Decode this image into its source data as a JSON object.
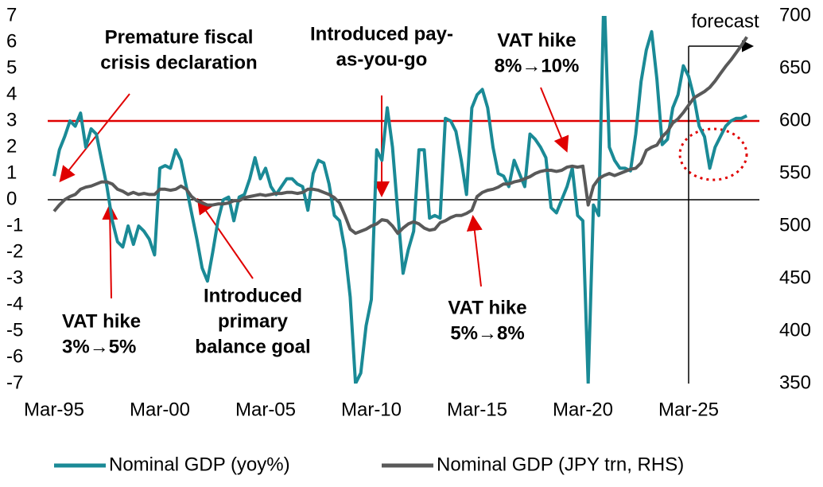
{
  "chart_data": {
    "type": "line",
    "categories": [
      "Mar-95",
      null,
      null,
      null,
      null,
      null,
      null,
      null,
      null,
      null,
      null,
      null,
      null,
      null,
      null,
      null,
      null,
      null,
      null,
      null,
      "Mar-00",
      null,
      null,
      null,
      null,
      null,
      null,
      null,
      null,
      null,
      null,
      null,
      null,
      null,
      null,
      null,
      null,
      null,
      null,
      null,
      "Mar-05",
      null,
      null,
      null,
      null,
      null,
      null,
      null,
      null,
      null,
      null,
      null,
      null,
      null,
      null,
      null,
      null,
      null,
      null,
      null,
      "Mar-10",
      null,
      null,
      null,
      null,
      null,
      null,
      null,
      null,
      null,
      null,
      null,
      null,
      null,
      null,
      null,
      null,
      null,
      null,
      null,
      "Mar-15",
      null,
      null,
      null,
      null,
      null,
      null,
      null,
      null,
      null,
      null,
      null,
      null,
      null,
      null,
      null,
      null,
      null,
      null,
      null,
      "Mar-20",
      null,
      null,
      null,
      null,
      null,
      null,
      null,
      null,
      null,
      null,
      null,
      null,
      null,
      null,
      null,
      null,
      null,
      null,
      null,
      "Mar-25",
      null,
      null,
      null,
      null,
      null,
      null,
      null,
      null,
      null,
      null,
      null
    ],
    "series": [
      {
        "name": "Nominal GDP (yoy%)",
        "color": "#1a8a96",
        "values": [
          0.9,
          1.9,
          2.4,
          3.0,
          2.8,
          3.3,
          2.0,
          2.7,
          2.5,
          1.5,
          0.5,
          -0.8,
          -1.6,
          -1.8,
          -1.0,
          -1.7,
          -1.0,
          -1.2,
          -1.5,
          -2.1,
          1.2,
          1.3,
          1.2,
          1.9,
          1.5,
          0.5,
          -0.5,
          -1.5,
          -2.6,
          -3.1,
          -2.0,
          -0.8,
          0.0,
          0.1,
          -0.8,
          0.1,
          0.2,
          0.8,
          1.6,
          0.8,
          1.2,
          0.5,
          0.2,
          0.5,
          0.8,
          0.8,
          0.6,
          0.5,
          -0.4,
          1.0,
          1.5,
          1.4,
          0.6,
          -0.6,
          -0.8,
          -1.9,
          -3.7,
          -7.0,
          -6.6,
          -4.8,
          -3.8,
          1.9,
          1.5,
          3.5,
          2.0,
          -0.5,
          -2.8,
          -1.9,
          -1.2,
          1.9,
          1.9,
          -0.7,
          -0.6,
          -0.7,
          3.1,
          3.0,
          2.6,
          1.5,
          0.2,
          3.5,
          4.0,
          4.2,
          3.5,
          2.0,
          1.0,
          0.9,
          0.5,
          1.5,
          1.0,
          0.5,
          2.5,
          2.3,
          2.0,
          1.6,
          -0.3,
          -0.5,
          0.0,
          0.5,
          1.2,
          -0.6,
          -0.8,
          -7.0,
          -0.2,
          -0.6,
          8.0,
          2.0,
          1.5,
          1.2,
          1.2,
          1.1,
          2.5,
          4.5,
          5.7,
          6.4,
          4.6,
          2.1,
          2.3,
          3.5,
          4.0,
          5.1,
          4.7,
          3.9,
          2.8,
          2.4,
          1.2,
          2.0,
          2.4,
          2.8,
          3.0,
          3.1,
          3.1,
          3.2
        ]
      },
      {
        "name": "Nominal GDP (JPY trn, RHS)",
        "color": "#595959",
        "axis": "y2",
        "values": [
          514,
          520,
          525,
          528,
          530,
          535,
          537,
          538,
          540,
          542,
          542,
          540,
          535,
          533,
          530,
          532,
          530,
          531,
          530,
          530,
          535,
          535,
          534,
          535,
          538,
          535,
          528,
          524,
          522,
          520,
          520,
          521,
          521,
          522,
          524,
          524,
          527,
          528,
          529,
          530,
          529,
          530,
          531,
          531,
          532,
          532,
          531,
          532,
          535,
          535,
          534,
          532,
          530,
          527,
          522,
          510,
          497,
          493,
          495,
          497,
          500,
          502,
          506,
          505,
          500,
          493,
          498,
          502,
          504,
          502,
          498,
          496,
          497,
          503,
          505,
          508,
          510,
          510,
          512,
          515,
          528,
          532,
          534,
          535,
          537,
          540,
          540,
          542,
          543,
          545,
          547,
          550,
          552,
          553,
          553,
          552,
          553,
          556,
          557,
          556,
          557,
          520,
          538,
          545,
          548,
          550,
          548,
          550,
          552,
          554,
          555,
          560,
          572,
          575,
          577,
          585,
          590,
          598,
          602,
          608,
          615,
          622,
          625,
          628,
          632,
          638,
          645,
          652,
          658,
          665,
          672,
          680
        ]
      }
    ],
    "ylim": [
      -7,
      7
    ],
    "yticks": [
      -7,
      -6,
      -5,
      -4,
      -3,
      -2,
      -1,
      0,
      1,
      2,
      3,
      4,
      5,
      6,
      7
    ],
    "negative_tick_color": "#e00000",
    "y2lim": [
      350,
      700
    ],
    "y2ticks": [
      350,
      400,
      450,
      500,
      550,
      600,
      650,
      700
    ],
    "reference_line": {
      "value": 3,
      "color": "#e00000"
    },
    "forecast": {
      "label": "forecast",
      "index": 120
    },
    "annotations": [
      {
        "lines": [
          "Premature fiscal",
          "crisis declaration"
        ]
      },
      {
        "lines": [
          "Introduced pay-",
          "as-you-go"
        ]
      },
      {
        "lines": [
          "VAT hike",
          "8%→10%"
        ]
      },
      {
        "lines": [
          "VAT hike",
          "3%→5%"
        ]
      },
      {
        "lines": [
          "Introduced",
          "primary",
          "balance goal"
        ]
      },
      {
        "lines": [
          "VAT hike",
          "5%→8%"
        ]
      }
    ],
    "legend": "bottom"
  }
}
